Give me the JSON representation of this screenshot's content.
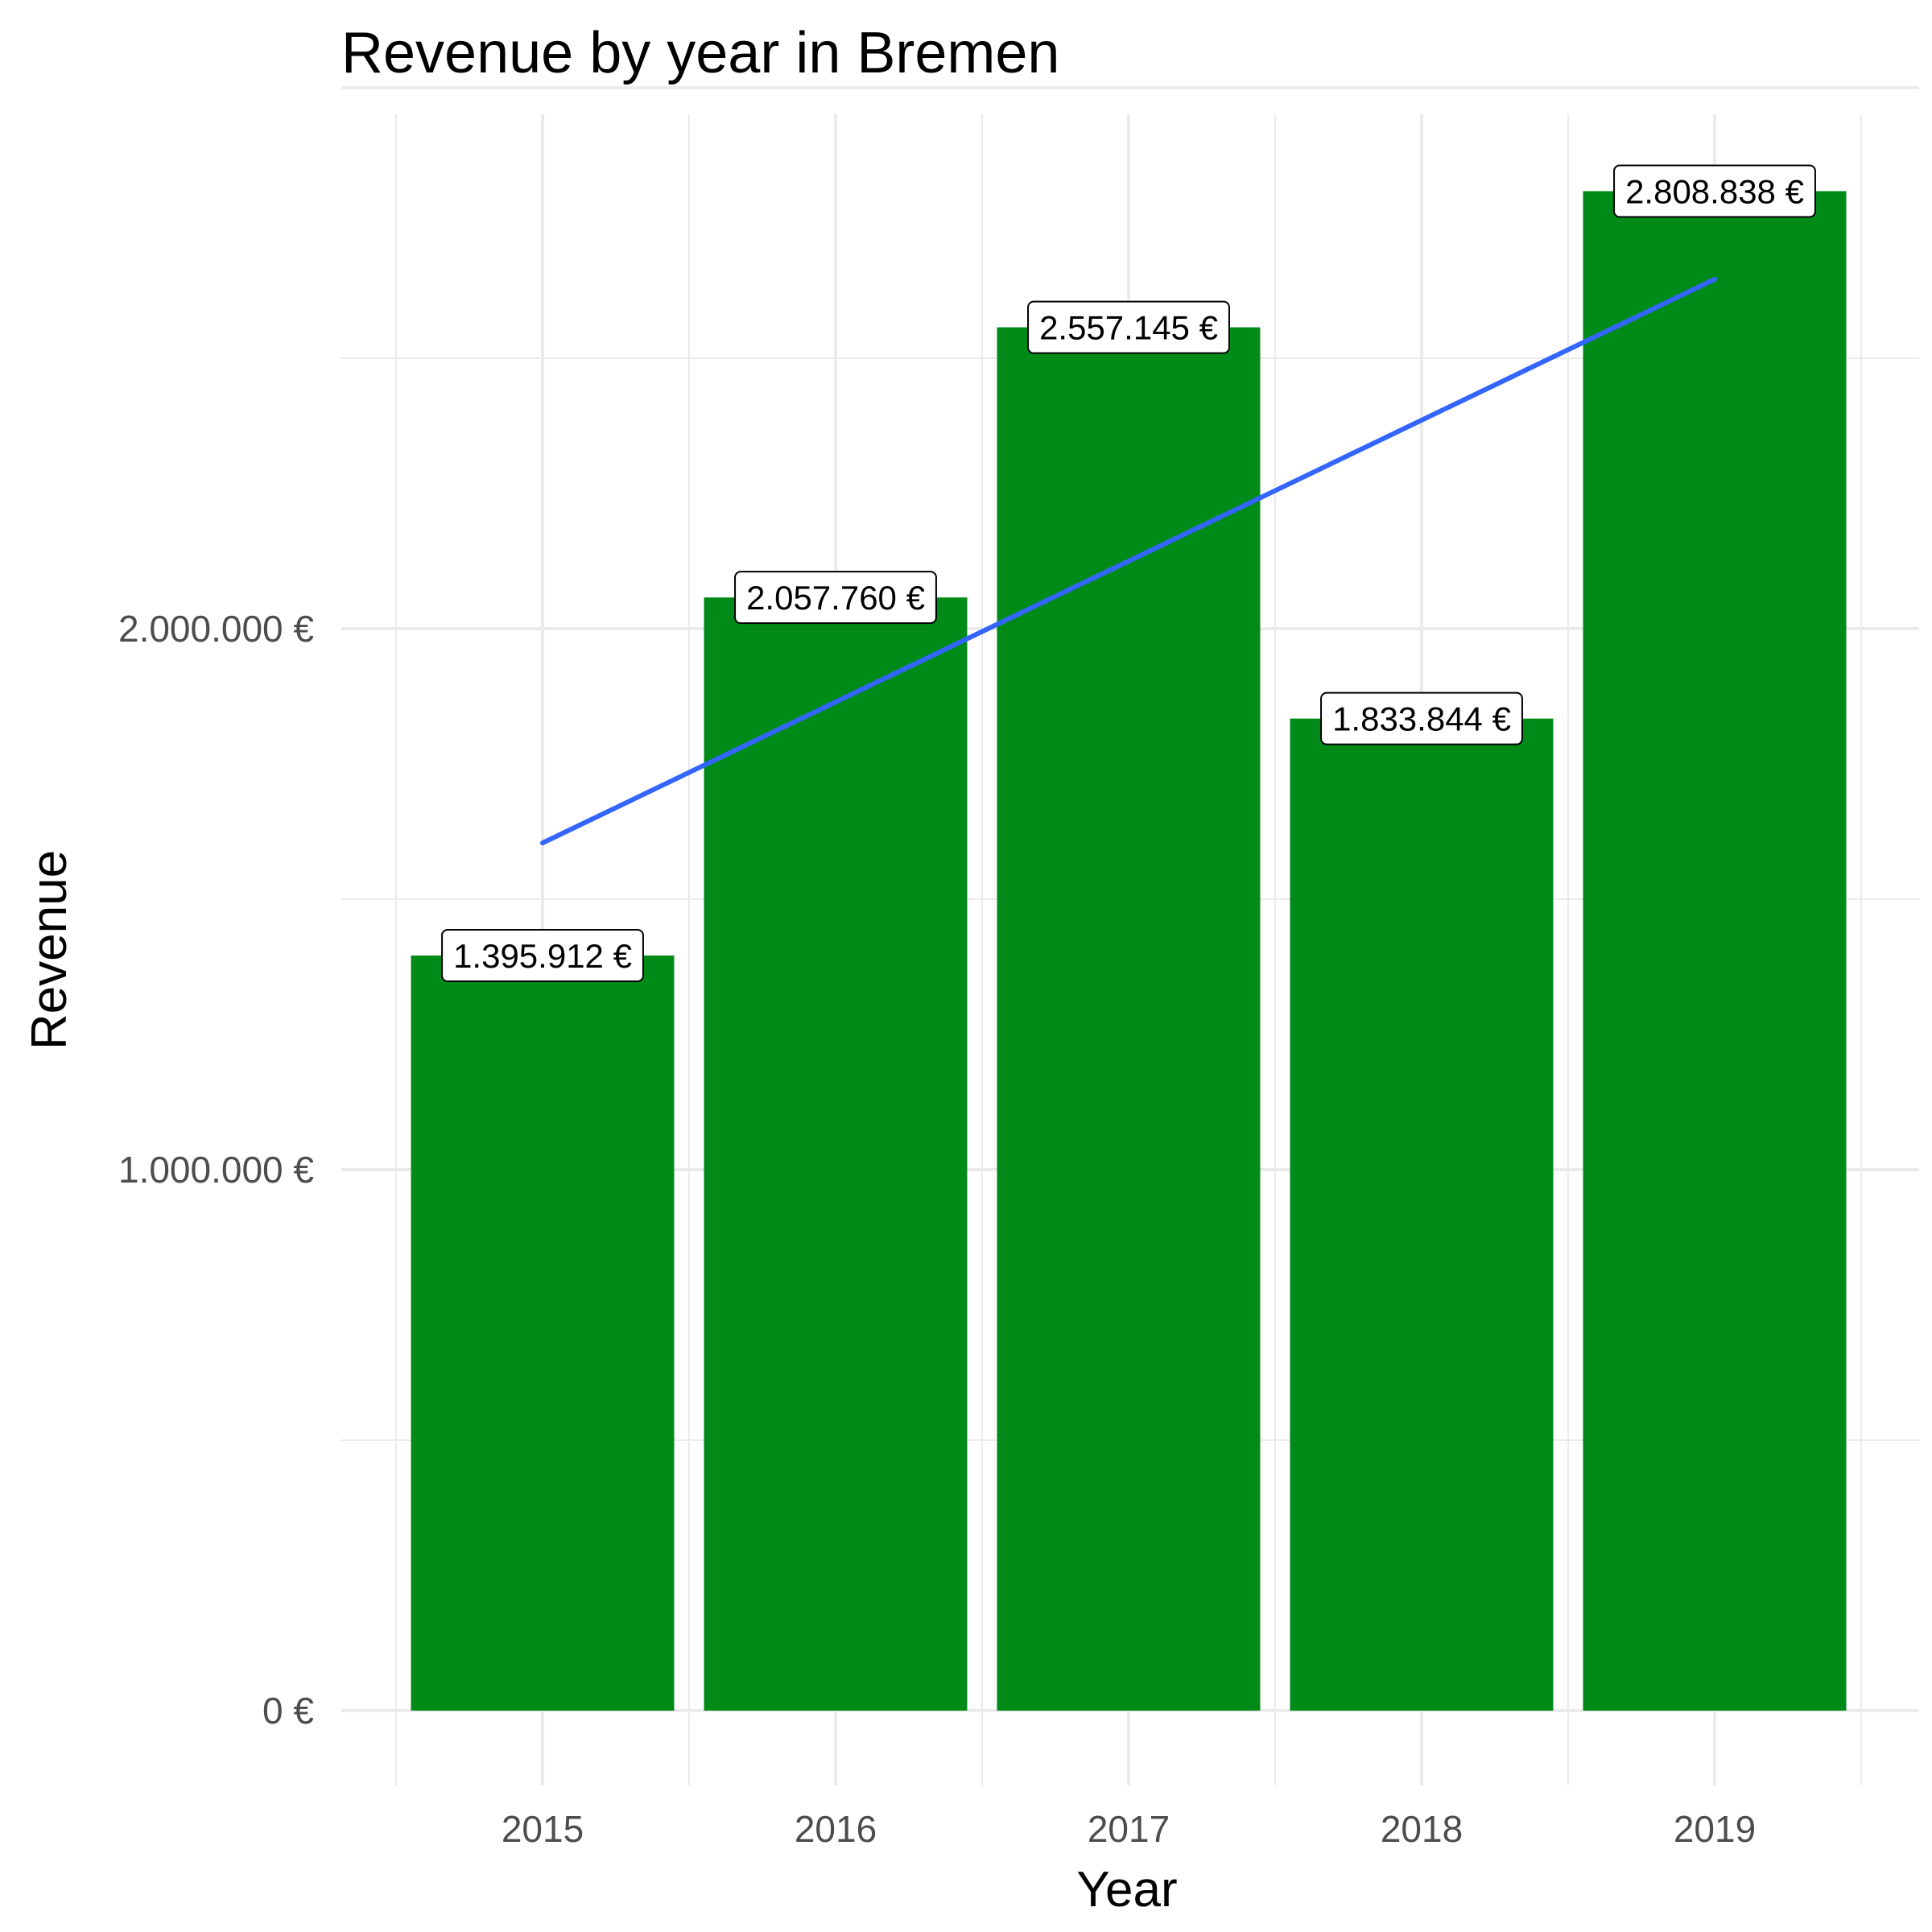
{
  "chart_data": {
    "type": "bar",
    "title": "Revenue by year in Bremen",
    "xlabel": "Year",
    "ylabel": "Revenue",
    "categories": [
      "2015",
      "2016",
      "2017",
      "2018",
      "2019"
    ],
    "values": [
      1395912,
      2057760,
      2557145,
      1833844,
      2808838
    ],
    "data_labels": [
      "1.395.912 €",
      "2.057.760 €",
      "2.557.145 €",
      "1.833.844 €",
      "2.808.838 €"
    ],
    "yticks": [
      0,
      1000000,
      2000000
    ],
    "ytick_labels": [
      "0 €",
      "1.000.000 €",
      "2.000.000 €"
    ],
    "ylim": [
      0,
      3000000
    ],
    "trend_line": {
      "start": 1604000,
      "end": 2646000
    },
    "grid": true,
    "legend": "none",
    "colors": {
      "bar": "#008B19",
      "trend": "#3366FF",
      "grid": "#EBEBEB"
    }
  }
}
